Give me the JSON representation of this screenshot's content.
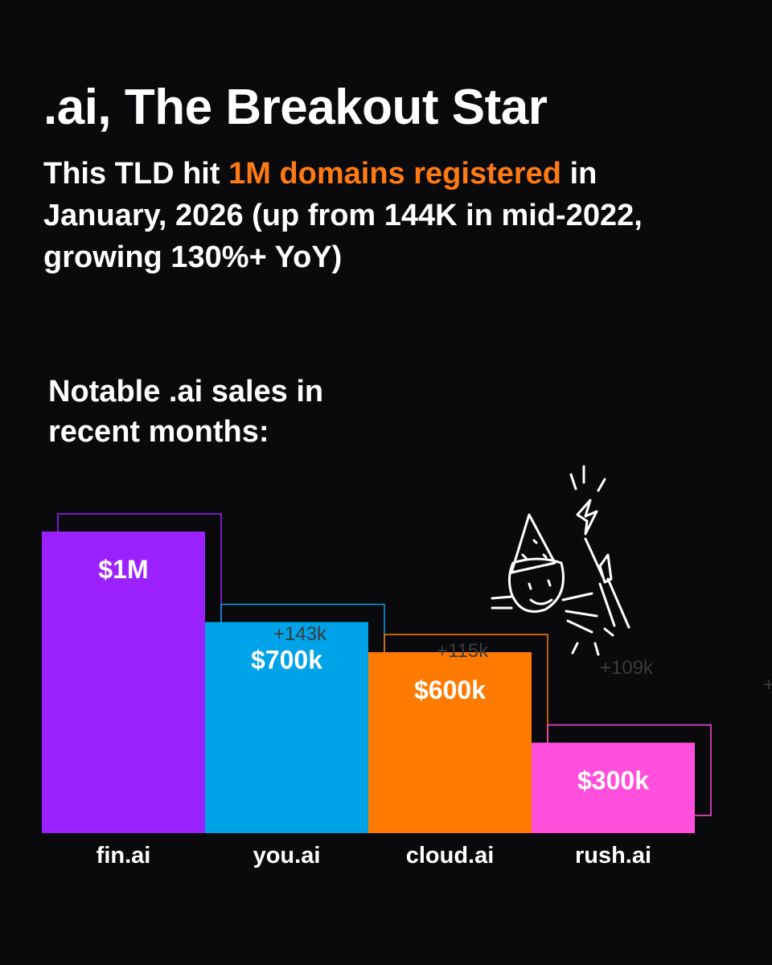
{
  "chart_data": {
    "type": "bar",
    "title": ".ai, The Breakout Star",
    "subtitle": {
      "before": "This TLD hit",
      "highlight": "1M domains registered",
      "after": "in January, 2026 (up from 144K in mid-2022, growing 130%+ YoY)"
    },
    "chart_title": "Notable .ai sales in recent months:",
    "categories": [
      "fin.ai",
      "you.ai",
      "cloud.ai",
      "rush.ai"
    ],
    "values": [
      1000000,
      700000,
      600000,
      300000
    ],
    "value_labels": [
      "$1M",
      "$700k",
      "$600k",
      "$300k"
    ],
    "colors": [
      "#9b22ff",
      "#00a2e8",
      "#ff7a00",
      "#ff4fdc"
    ],
    "annotations": [
      "+143k",
      "+115k",
      "+109k",
      "+"
    ]
  }
}
